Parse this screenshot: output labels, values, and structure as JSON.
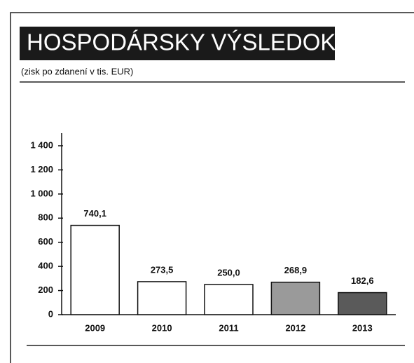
{
  "chart_data": {
    "type": "bar",
    "title": "HOSPODÁRSKY VÝSLEDOK",
    "subtitle": "(zisk po zdanení v tis. EUR)",
    "categories": [
      "2009",
      "2010",
      "2011",
      "2012",
      "2013"
    ],
    "values": [
      740.1,
      273.5,
      250.0,
      268.9,
      182.6
    ],
    "value_labels": [
      "740,1",
      "273,5",
      "250,0",
      "268,9",
      "182,6"
    ],
    "colors": [
      "#ffffff",
      "#ffffff",
      "#ffffff",
      "#9a9a9a",
      "#5a5a5a"
    ],
    "ylim": [
      0,
      1400
    ],
    "yticks": [
      0,
      200,
      400,
      600,
      800,
      {
        "value": 1000,
        "label": "1 000"
      },
      {
        "value": 1200,
        "label": "1 200"
      },
      {
        "value": 1400,
        "label": "1 400"
      }
    ],
    "grid": false
  }
}
